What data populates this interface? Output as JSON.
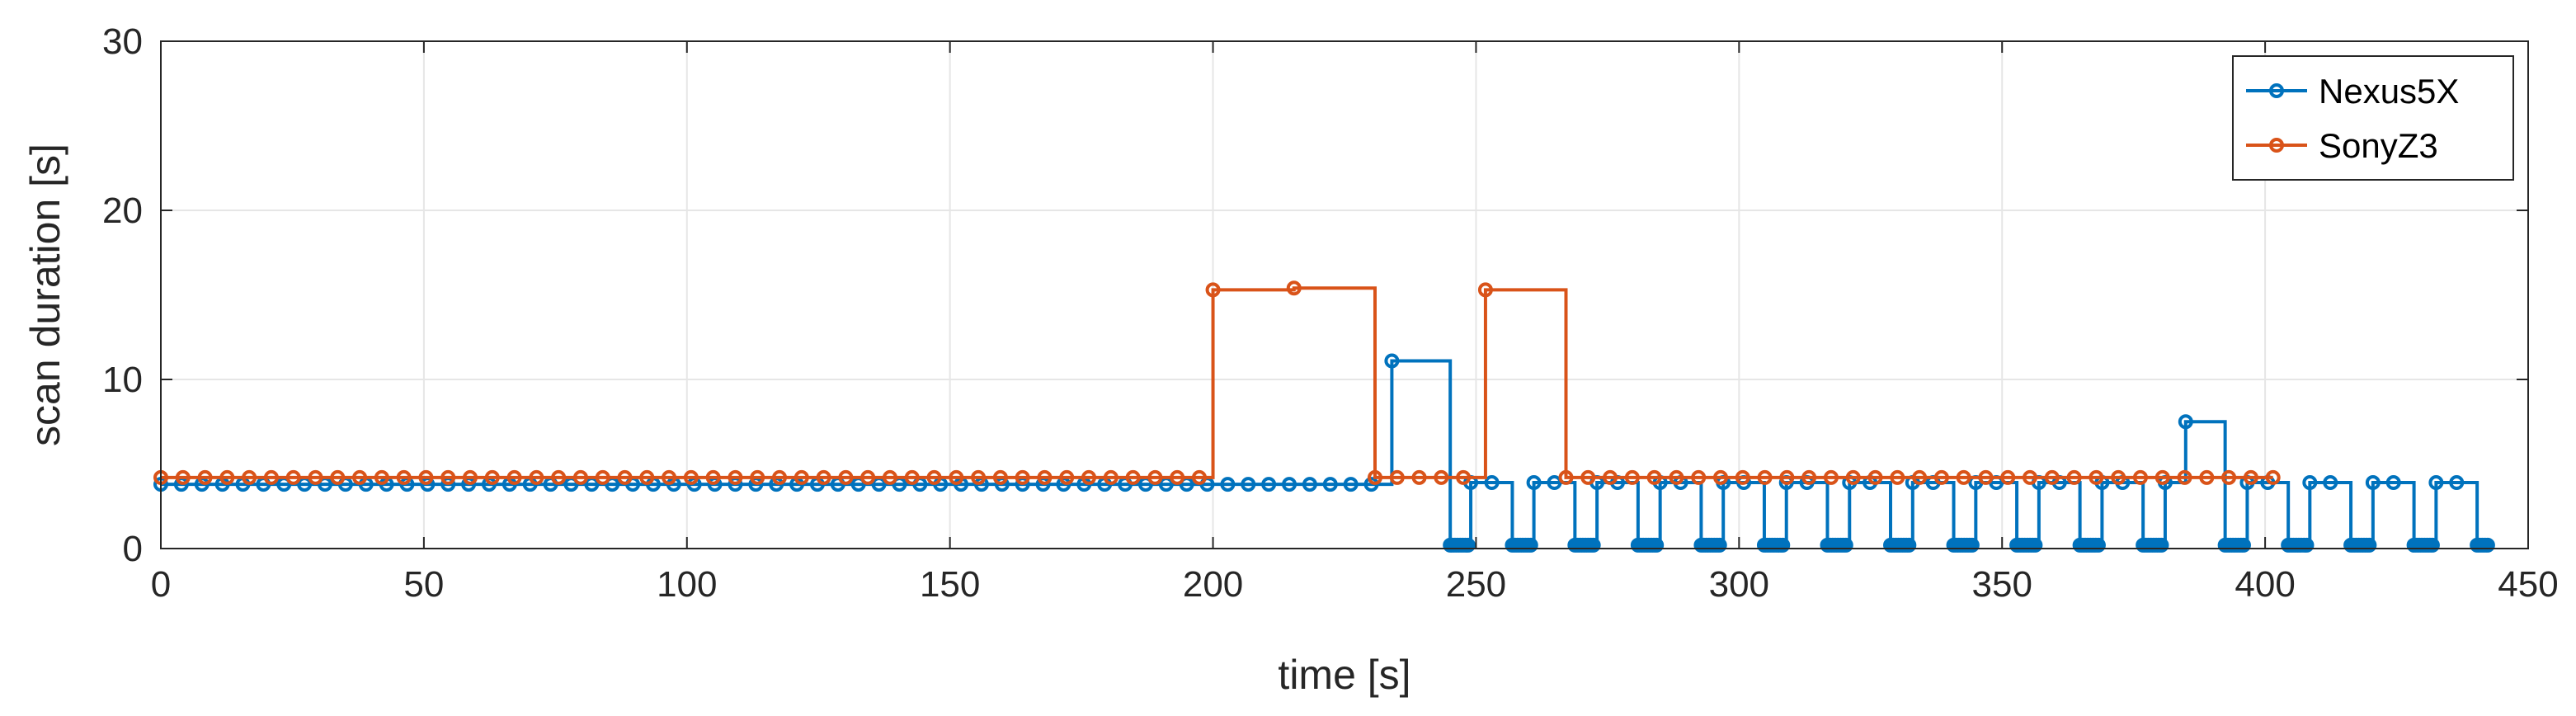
{
  "chart_data": {
    "type": "line",
    "step": true,
    "xlabel": "time [s]",
    "ylabel": "scan duration [s]",
    "xlim": [
      0,
      450
    ],
    "ylim": [
      0,
      30
    ],
    "xticks": [
      0,
      50,
      100,
      150,
      200,
      250,
      300,
      350,
      400,
      450
    ],
    "yticks": [
      0,
      10,
      20,
      30
    ],
    "xtick_labels": [
      "0",
      "50",
      "100",
      "150",
      "200",
      "250",
      "300",
      "350",
      "400",
      "450"
    ],
    "ytick_labels": [
      "0",
      "10",
      "20",
      "30"
    ],
    "grid": true,
    "legend_position": "top-right",
    "series": [
      {
        "name": "Nexus5X",
        "color": "#0072BD",
        "x": [
          0,
          3.9,
          7.8,
          11.7,
          15.6,
          19.5,
          23.4,
          27.3,
          31.2,
          35.1,
          39,
          42.9,
          46.8,
          50.7,
          54.6,
          58.5,
          62.4,
          66.3,
          70.2,
          74.1,
          78,
          81.9,
          85.8,
          89.7,
          93.6,
          97.5,
          101.4,
          105.3,
          109.2,
          113.1,
          117,
          120.9,
          124.8,
          128.7,
          132.6,
          136.5,
          140.4,
          144.3,
          148.2,
          152.1,
          156,
          159.9,
          163.8,
          167.7,
          171.6,
          175.5,
          179.4,
          183.3,
          187.2,
          191.1,
          195,
          198.9,
          202.8,
          206.7,
          210.6,
          214.5,
          218.4,
          222.3,
          226.2,
          230.1,
          234,
          245.1,
          245.5,
          246,
          246.5,
          247,
          247.5,
          248,
          248.5,
          249,
          253,
          256.9,
          257.4,
          257.9,
          258.4,
          258.9,
          259.4,
          259.9,
          260.4,
          261,
          264.9,
          268.8,
          269.3,
          269.8,
          270.3,
          270.8,
          271.3,
          271.8,
          272.3,
          273,
          276.9,
          280.8,
          281.3,
          281.8,
          282.3,
          282.8,
          283.3,
          283.8,
          284.3,
          285,
          288.9,
          292.8,
          293.3,
          293.8,
          294.3,
          294.8,
          295.3,
          295.8,
          296.3,
          297,
          300.9,
          304.8,
          305.3,
          305.8,
          306.3,
          306.8,
          307.3,
          307.8,
          308.3,
          309,
          312.9,
          316.8,
          317.3,
          317.8,
          318.3,
          318.8,
          319.3,
          319.8,
          320.3,
          321,
          324.9,
          328.8,
          329.3,
          329.8,
          330.3,
          330.8,
          331.3,
          331.8,
          332.3,
          333,
          336.9,
          340.8,
          341.3,
          341.8,
          342.3,
          342.8,
          343.3,
          343.8,
          344.3,
          345,
          348.9,
          352.8,
          353.3,
          353.8,
          354.3,
          354.8,
          355.3,
          355.8,
          356.3,
          357,
          360.9,
          364.8,
          365.3,
          365.8,
          366.3,
          366.8,
          367.3,
          367.8,
          368.3,
          369,
          372.9,
          376.8,
          377.3,
          377.8,
          378.3,
          378.8,
          379.3,
          379.8,
          380.3,
          381,
          384.9,
          392.4,
          392.9,
          393.4,
          393.9,
          394.4,
          394.9,
          395.4,
          395.9,
          396.6,
          400.5,
          404.4,
          404.9,
          405.4,
          405.9,
          406.4,
          406.9,
          407.4,
          407.9,
          408.5,
          412.4,
          416.3,
          416.8,
          417.3,
          417.8,
          418.3,
          418.8,
          419.3,
          419.8,
          420.5,
          424.4,
          428.3,
          428.8,
          429.3,
          429.8,
          430.3,
          430.8,
          431.3,
          431.8,
          432.5,
          436.4,
          440.3,
          440.8,
          441.3,
          441.8,
          442.3
        ],
        "y": [
          3.8,
          3.8,
          3.8,
          3.8,
          3.8,
          3.8,
          3.8,
          3.8,
          3.8,
          3.8,
          3.8,
          3.8,
          3.8,
          3.8,
          3.8,
          3.8,
          3.8,
          3.8,
          3.8,
          3.8,
          3.8,
          3.8,
          3.8,
          3.8,
          3.8,
          3.8,
          3.8,
          3.8,
          3.8,
          3.8,
          3.8,
          3.8,
          3.8,
          3.8,
          3.8,
          3.8,
          3.8,
          3.8,
          3.8,
          3.8,
          3.8,
          3.8,
          3.8,
          3.8,
          3.8,
          3.8,
          3.8,
          3.8,
          3.8,
          3.8,
          3.8,
          3.8,
          3.8,
          3.8,
          3.8,
          3.8,
          3.8,
          3.8,
          3.8,
          3.8,
          11.1,
          0.2,
          0.2,
          0.2,
          0.2,
          0.2,
          0.2,
          0.2,
          0.2,
          3.9,
          3.9,
          0.2,
          0.2,
          0.2,
          0.2,
          0.2,
          0.2,
          0.2,
          0.2,
          3.9,
          3.9,
          0.2,
          0.2,
          0.2,
          0.2,
          0.2,
          0.2,
          0.2,
          0.2,
          3.9,
          3.9,
          0.2,
          0.2,
          0.2,
          0.2,
          0.2,
          0.2,
          0.2,
          0.2,
          3.9,
          3.9,
          0.2,
          0.2,
          0.2,
          0.2,
          0.2,
          0.2,
          0.2,
          0.2,
          3.9,
          3.9,
          0.2,
          0.2,
          0.2,
          0.2,
          0.2,
          0.2,
          0.2,
          0.2,
          3.9,
          3.9,
          0.2,
          0.2,
          0.2,
          0.2,
          0.2,
          0.2,
          0.2,
          0.2,
          3.9,
          3.9,
          0.2,
          0.2,
          0.2,
          0.2,
          0.2,
          0.2,
          0.2,
          0.2,
          3.9,
          3.9,
          0.2,
          0.2,
          0.2,
          0.2,
          0.2,
          0.2,
          0.2,
          0.2,
          3.9,
          3.9,
          0.2,
          0.2,
          0.2,
          0.2,
          0.2,
          0.2,
          0.2,
          0.2,
          3.9,
          3.9,
          0.2,
          0.2,
          0.2,
          0.2,
          0.2,
          0.2,
          0.2,
          0.2,
          3.9,
          3.9,
          0.2,
          0.2,
          0.2,
          0.2,
          0.2,
          0.2,
          0.2,
          0.2,
          3.9,
          7.5,
          0.2,
          0.2,
          0.2,
          0.2,
          0.2,
          0.2,
          0.2,
          0.2,
          3.9,
          3.9,
          0.2,
          0.2,
          0.2,
          0.2,
          0.2,
          0.2,
          0.2,
          0.2,
          3.9,
          3.9,
          0.2,
          0.2,
          0.2,
          0.2,
          0.2,
          0.2,
          0.2,
          0.2,
          3.9,
          3.9,
          0.2,
          0.2,
          0.2,
          0.2,
          0.2,
          0.2,
          0.2,
          0.2,
          3.9,
          3.9,
          0.2,
          0.2,
          0.2,
          0.2,
          0.2
        ]
      },
      {
        "name": "SonyZ3",
        "color": "#D95319",
        "x": [
          0,
          4.2,
          8.4,
          12.6,
          16.8,
          21,
          25.2,
          29.4,
          33.6,
          37.8,
          42,
          46.2,
          50.4,
          54.6,
          58.8,
          63,
          67.2,
          71.4,
          75.6,
          79.8,
          84,
          88.2,
          92.4,
          96.6,
          100.8,
          105,
          109.2,
          113.4,
          117.6,
          121.8,
          126,
          130.2,
          134.4,
          138.6,
          142.8,
          147,
          151.2,
          155.4,
          159.6,
          163.8,
          168,
          172.2,
          176.4,
          180.6,
          184.8,
          189,
          193.2,
          197.4,
          200,
          215.4,
          230.8,
          235,
          239.2,
          243.4,
          247.6,
          251.8,
          267.1,
          271.3,
          275.5,
          279.7,
          283.9,
          288.1,
          292.3,
          296.5,
          300.7,
          304.9,
          309.1,
          313.3,
          317.5,
          321.7,
          325.9,
          330.1,
          334.3,
          338.5,
          342.7,
          346.9,
          351.1,
          355.3,
          359.5,
          363.7,
          367.9,
          372.1,
          376.3,
          380.5,
          384.7,
          388.9,
          393.1,
          397.3,
          401.5
        ],
        "y": [
          4.2,
          4.2,
          4.2,
          4.2,
          4.2,
          4.2,
          4.2,
          4.2,
          4.2,
          4.2,
          4.2,
          4.2,
          4.2,
          4.2,
          4.2,
          4.2,
          4.2,
          4.2,
          4.2,
          4.2,
          4.2,
          4.2,
          4.2,
          4.2,
          4.2,
          4.2,
          4.2,
          4.2,
          4.2,
          4.2,
          4.2,
          4.2,
          4.2,
          4.2,
          4.2,
          4.2,
          4.2,
          4.2,
          4.2,
          4.2,
          4.2,
          4.2,
          4.2,
          4.2,
          4.2,
          4.2,
          4.2,
          4.2,
          15.3,
          15.4,
          4.2,
          4.2,
          4.2,
          4.2,
          4.2,
          15.3,
          4.2,
          4.2,
          4.2,
          4.2,
          4.2,
          4.2,
          4.2,
          4.2,
          4.2,
          4.2,
          4.2,
          4.2,
          4.2,
          4.2,
          4.2,
          4.2,
          4.2,
          4.2,
          4.2,
          4.2,
          4.2,
          4.2,
          4.2,
          4.2,
          4.2,
          4.2,
          4.2,
          4.2,
          4.2,
          4.2,
          4.2,
          4.2,
          4.2
        ]
      }
    ]
  }
}
